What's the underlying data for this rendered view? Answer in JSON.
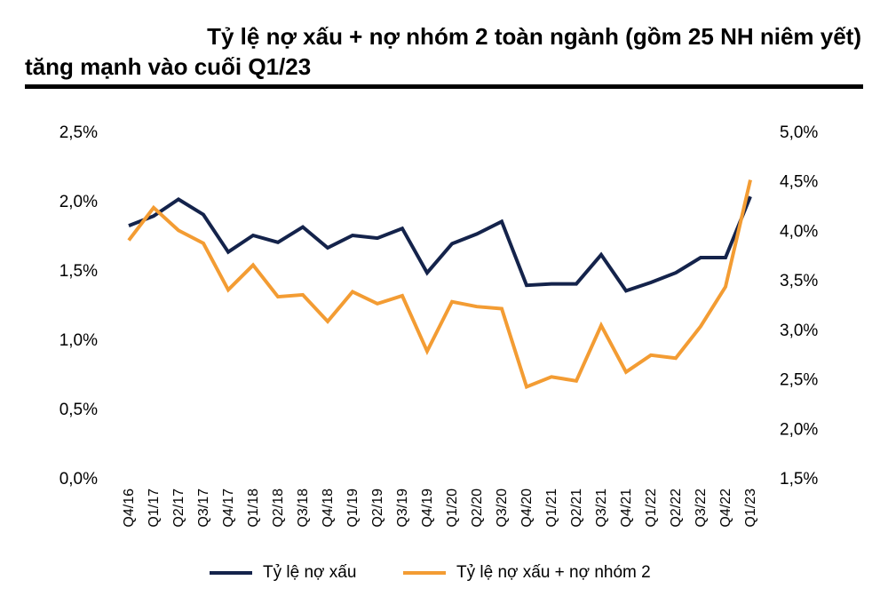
{
  "header": {
    "title_line1": "Tỷ lệ nợ xấu + nợ nhóm 2 toàn ngành (gồm 25 NH niêm yết)",
    "title_line2": "tăng mạnh vào cuối Q1/23"
  },
  "colors": {
    "series1": "#14234b",
    "series2": "#f39c33",
    "rule": "#000000"
  },
  "chart_data": {
    "type": "line",
    "title": "Tỷ lệ nợ xấu + nợ nhóm 2 toàn ngành (gồm 25 NH niêm yết) tăng mạnh vào cuối Q1/23",
    "categories": [
      "Q4/16",
      "Q1/17",
      "Q2/17",
      "Q3/17",
      "Q4/17",
      "Q1/18",
      "Q2/18",
      "Q3/18",
      "Q4/18",
      "Q1/19",
      "Q2/19",
      "Q3/19",
      "Q4/19",
      "Q1/20",
      "Q2/20",
      "Q3/20",
      "Q4/20",
      "Q1/21",
      "Q2/21",
      "Q3/21",
      "Q4/21",
      "Q1/22",
      "Q2/22",
      "Q3/22",
      "Q4/22",
      "Q1/23"
    ],
    "left_axis": {
      "range": [
        0,
        2.5
      ],
      "ticks": [
        0,
        0.5,
        1.0,
        1.5,
        2.0,
        2.5
      ],
      "tick_labels": [
        "0,0%",
        "0,5%",
        "1,0%",
        "1,5%",
        "2,0%",
        "2,5%"
      ]
    },
    "right_axis": {
      "range": [
        1.5,
        5.0
      ],
      "ticks": [
        1.5,
        2.0,
        2.5,
        3.0,
        3.5,
        4.0,
        4.5,
        5.0
      ],
      "tick_labels": [
        "1,5%",
        "2,0%",
        "2,5%",
        "3,0%",
        "3,5%",
        "4,0%",
        "4,5%",
        "5,0%"
      ]
    },
    "series": [
      {
        "name": "Tỷ lệ nợ xấu",
        "axis": "left",
        "values": [
          1.82,
          1.89,
          2.01,
          1.9,
          1.63,
          1.75,
          1.7,
          1.81,
          1.66,
          1.75,
          1.73,
          1.8,
          1.48,
          1.69,
          1.76,
          1.85,
          1.39,
          1.4,
          1.4,
          1.61,
          1.35,
          1.41,
          1.48,
          1.59,
          1.59,
          2.03
        ]
      },
      {
        "name": "Tỷ lệ nợ xấu + nợ nhóm 2",
        "axis": "right",
        "values": [
          3.9,
          4.23,
          4.0,
          3.87,
          3.4,
          3.65,
          3.33,
          3.35,
          3.08,
          3.38,
          3.26,
          3.34,
          2.78,
          3.28,
          3.23,
          3.21,
          2.42,
          2.52,
          2.48,
          3.04,
          2.57,
          2.74,
          2.71,
          3.03,
          3.43,
          4.51
        ]
      }
    ],
    "legend_position": "bottom",
    "grid": false
  }
}
